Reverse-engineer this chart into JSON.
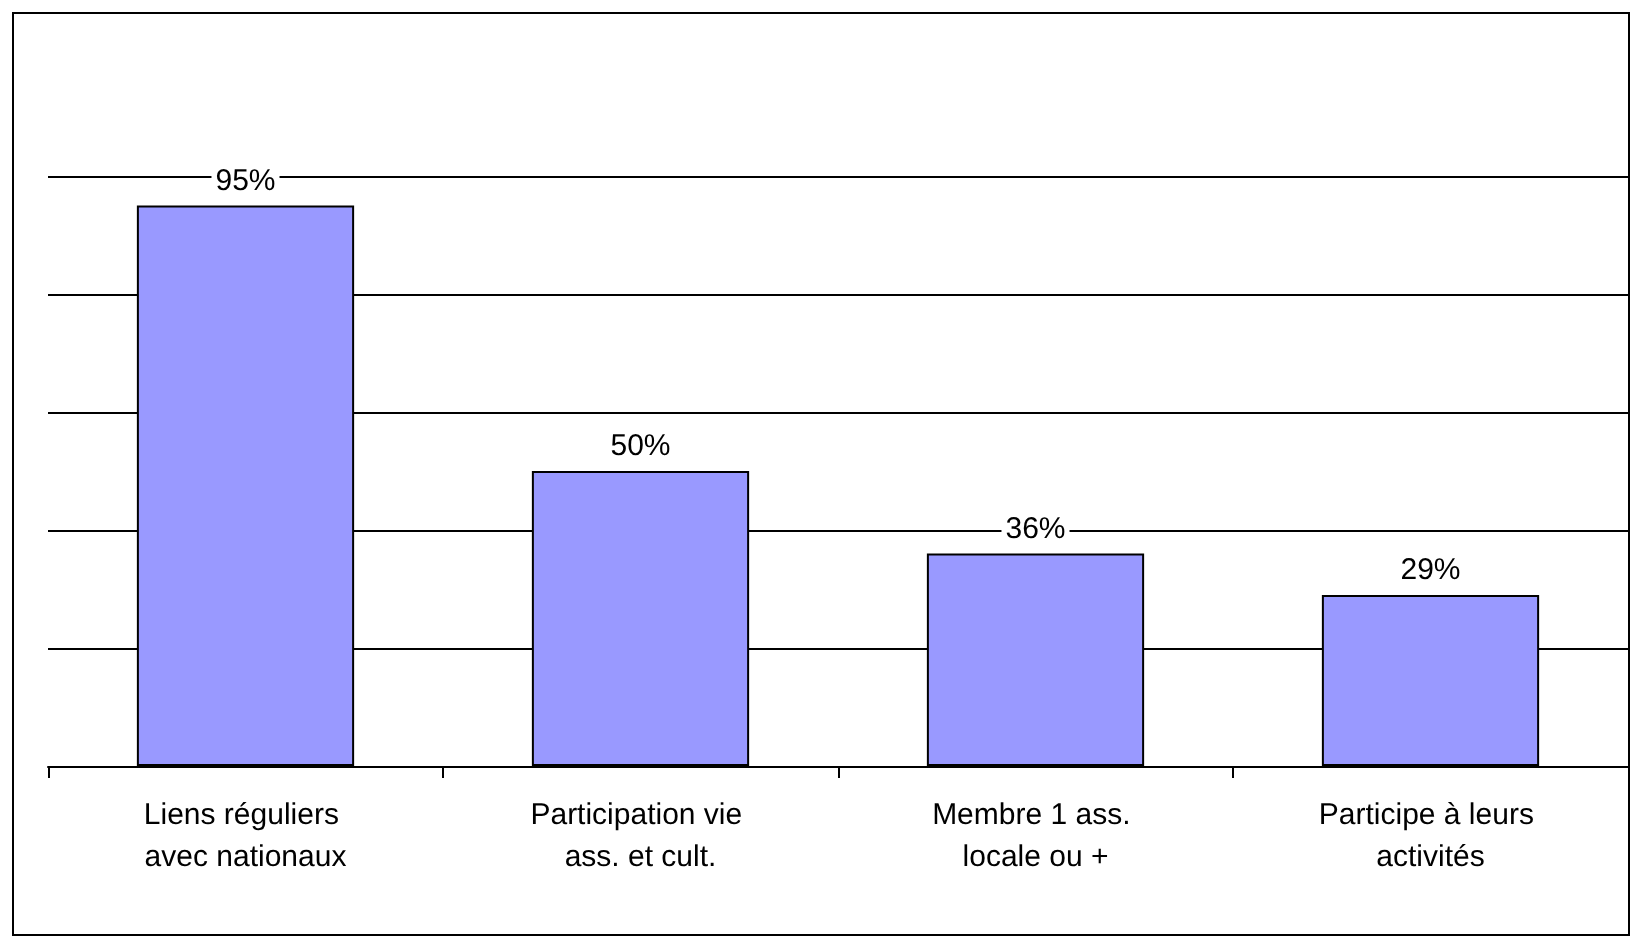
{
  "chart_data": {
    "type": "bar",
    "categories": [
      "Liens réguliers avec nationaux",
      "Participation vie ass. et cult.",
      "Membre 1 ass. locale ou +",
      "Participe à leurs activités"
    ],
    "values": [
      95,
      50,
      36,
      29
    ],
    "value_labels": [
      "95%",
      "50%",
      "36%",
      "29%"
    ],
    "color": "#9999ff",
    "ylim": [
      0,
      100
    ],
    "yticks": [
      {
        "value": 0,
        "label": null
      },
      {
        "value": 20,
        "label": null
      },
      {
        "value": 40,
        "label": null
      },
      {
        "value": 60,
        "label": null
      },
      {
        "value": 80,
        "label": null
      },
      {
        "value": 100,
        "label": null
      }
    ],
    "grid": "y",
    "tick_labels": "x"
  }
}
